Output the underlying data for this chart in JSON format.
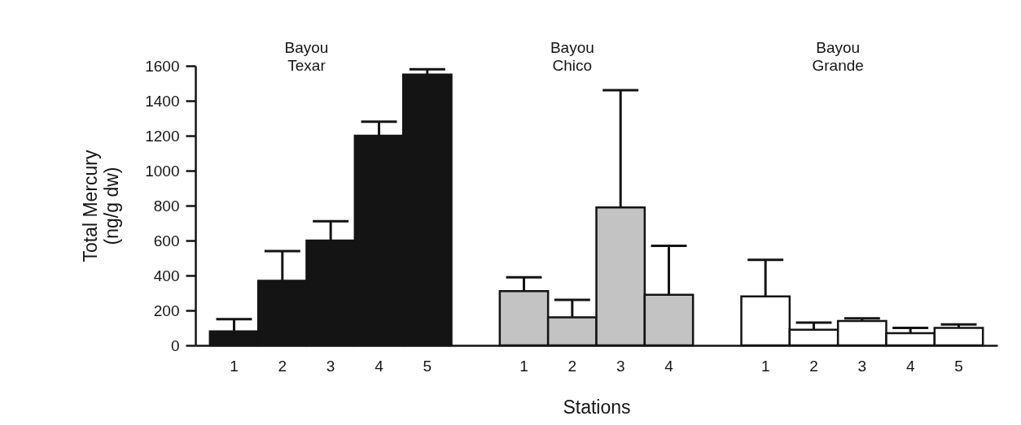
{
  "chart_data": {
    "type": "bar",
    "xlabel": "Stations",
    "ylabel": "Total Mercury\n(ng/g dw)",
    "categories": [
      "1",
      "2",
      "3",
      "4",
      "5",
      null,
      "1",
      "2",
      "3",
      "4",
      null,
      "1",
      "2",
      "3",
      "4",
      "5"
    ],
    "annotations": [
      "Bayou Texar",
      "Bayou Chico",
      "Bayou Grande"
    ],
    "ylim": [
      0,
      1600
    ],
    "yticks": [
      0,
      200,
      400,
      600,
      800,
      1000,
      1200,
      1400,
      1600
    ],
    "series": [
      {
        "color": "#141414",
        "values": [
          80,
          370,
          600,
          1200,
          1550,
          null,
          null,
          null,
          null,
          null,
          null,
          null,
          null,
          null,
          null,
          null
        ],
        "errors": [
          [
            80,
            150
          ],
          [
            370,
            540
          ],
          [
            600,
            710
          ],
          [
            1200,
            1280
          ],
          [
            1550,
            1580
          ],
          null,
          null,
          null,
          null,
          null,
          null,
          null,
          null,
          null,
          null,
          null
        ]
      },
      {
        "color": "#c3c3c3",
        "values": [
          null,
          null,
          null,
          null,
          null,
          null,
          310,
          160,
          790,
          290,
          null,
          null,
          null,
          null,
          null,
          null
        ],
        "errors": [
          null,
          null,
          null,
          null,
          null,
          null,
          [
            310,
            390
          ],
          [
            160,
            260
          ],
          [
            790,
            1460
          ],
          [
            290,
            570
          ],
          null,
          null,
          null,
          null,
          null,
          null
        ]
      },
      {
        "color": "#ffffff",
        "values": [
          null,
          null,
          null,
          null,
          null,
          null,
          null,
          null,
          null,
          null,
          null,
          280,
          90,
          140,
          70,
          100
        ],
        "errors": [
          null,
          null,
          null,
          null,
          null,
          null,
          null,
          null,
          null,
          null,
          null,
          [
            280,
            490
          ],
          [
            90,
            130
          ],
          [
            140,
            155
          ],
          [
            70,
            100
          ],
          [
            100,
            120
          ]
        ]
      }
    ]
  }
}
